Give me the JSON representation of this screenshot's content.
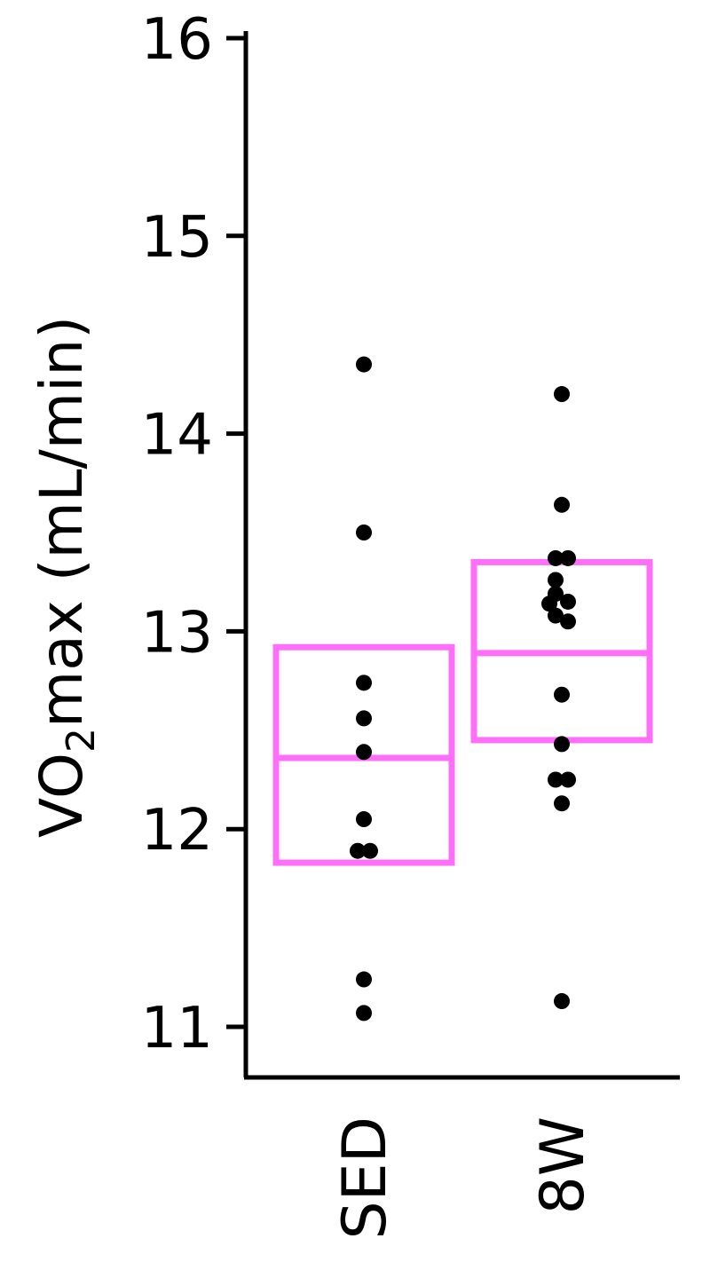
{
  "chart_data": {
    "type": "scatter",
    "ylabel_main": "VO",
    "ylabel_sub": "2",
    "ylabel_rest": "max (mL/min)",
    "ylim": [
      10.75,
      16.1
    ],
    "yticks": [
      "11",
      "12",
      "13",
      "14",
      "15",
      "16"
    ],
    "categories": [
      "SED",
      "8W"
    ],
    "grid": false,
    "legend": "none",
    "box_color": "#ff6ef8",
    "point_color": "#000000",
    "groups": [
      {
        "category": "SED",
        "box": {
          "low": 11.83,
          "mid": 12.36,
          "high": 12.92
        },
        "points": [
          14.35,
          13.5,
          12.74,
          12.56,
          12.39,
          12.05,
          11.89,
          11.89,
          11.24,
          11.07
        ]
      },
      {
        "category": "8W",
        "box": {
          "low": 12.45,
          "mid": 12.89,
          "high": 13.35
        },
        "points": [
          14.2,
          13.64,
          13.37,
          13.37,
          13.26,
          13.19,
          13.15,
          13.14,
          13.08,
          13.05,
          12.68,
          12.43,
          12.25,
          12.25,
          12.13,
          11.13
        ]
      }
    ]
  }
}
